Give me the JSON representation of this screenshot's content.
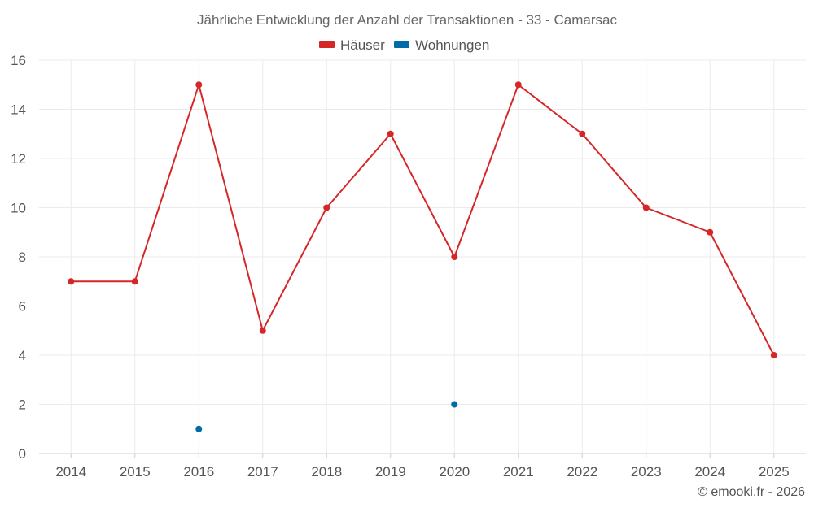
{
  "chart_data": {
    "type": "line",
    "title": "Jährliche Entwicklung der Anzahl der Transaktionen - 33 - Camarsac",
    "xlabel": "",
    "ylabel": "",
    "categories": [
      "2014",
      "2015",
      "2016",
      "2017",
      "2018",
      "2019",
      "2020",
      "2021",
      "2022",
      "2023",
      "2024",
      "2025"
    ],
    "ylim": [
      0,
      16
    ],
    "yticks": [
      0,
      2,
      4,
      6,
      8,
      10,
      12,
      14,
      16
    ],
    "grid": true,
    "legend": "top-center",
    "series": [
      {
        "name": "Häuser",
        "color": "#d62728",
        "values": [
          7,
          7,
          15,
          5,
          10,
          13,
          8,
          15,
          13,
          10,
          9,
          4
        ]
      },
      {
        "name": "Wohnungen",
        "color": "#006ba4",
        "values": [
          null,
          null,
          1,
          null,
          null,
          null,
          2,
          null,
          null,
          null,
          null,
          null
        ]
      }
    ]
  },
  "credit": "© emooki.fr - 2026"
}
